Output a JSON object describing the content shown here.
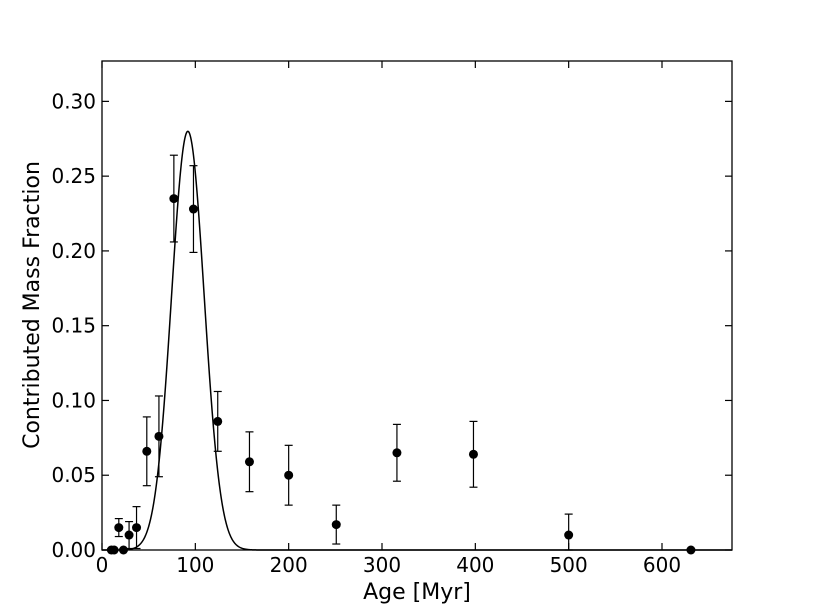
{
  "chart_data": {
    "type": "scatter",
    "xlabel": "Age [Myr]",
    "ylabel": "Contributed Mass Fraction",
    "xlim": [
      0,
      675
    ],
    "ylim": [
      0,
      0.327
    ],
    "xticks": [
      {
        "value": 0,
        "label": "0"
      },
      {
        "value": 100,
        "label": "100"
      },
      {
        "value": 200,
        "label": "200"
      },
      {
        "value": 300,
        "label": "300"
      },
      {
        "value": 400,
        "label": "400"
      },
      {
        "value": 500,
        "label": "500"
      },
      {
        "value": 600,
        "label": "600"
      }
    ],
    "yticks": [
      {
        "value": 0.0,
        "label": "0.00"
      },
      {
        "value": 0.05,
        "label": "0.05"
      },
      {
        "value": 0.1,
        "label": "0.10"
      },
      {
        "value": 0.15,
        "label": "0.15"
      },
      {
        "value": 0.2,
        "label": "0.20"
      },
      {
        "value": 0.25,
        "label": "0.25"
      },
      {
        "value": 0.3,
        "label": "0.30"
      }
    ],
    "grid": false,
    "points": [
      {
        "x": 10,
        "y": 0.0,
        "yerr": 0.0
      },
      {
        "x": 13,
        "y": 0.0,
        "yerr": 0.0
      },
      {
        "x": 18,
        "y": 0.015,
        "yerr": 0.006
      },
      {
        "x": 23,
        "y": 0.0,
        "yerr": 0.0
      },
      {
        "x": 29,
        "y": 0.01,
        "yerr": 0.009
      },
      {
        "x": 37,
        "y": 0.015,
        "yerr": 0.014
      },
      {
        "x": 48,
        "y": 0.066,
        "yerr": 0.023
      },
      {
        "x": 61,
        "y": 0.076,
        "yerr": 0.027
      },
      {
        "x": 77,
        "y": 0.235,
        "yerr": 0.029
      },
      {
        "x": 98,
        "y": 0.228,
        "yerr": 0.029
      },
      {
        "x": 124,
        "y": 0.086,
        "yerr": 0.02
      },
      {
        "x": 158,
        "y": 0.059,
        "yerr": 0.02
      },
      {
        "x": 200,
        "y": 0.05,
        "yerr": 0.02
      },
      {
        "x": 251,
        "y": 0.017,
        "yerr": 0.013
      },
      {
        "x": 316,
        "y": 0.065,
        "yerr": 0.019
      },
      {
        "x": 398,
        "y": 0.064,
        "yerr": 0.022
      },
      {
        "x": 500,
        "y": 0.01,
        "yerr": 0.014
      },
      {
        "x": 631,
        "y": 0.0,
        "yerr": 0.0
      }
    ],
    "fit_curve": {
      "type": "gaussian",
      "amplitude": 0.28,
      "mean": 92,
      "sigma": 17.5
    }
  }
}
